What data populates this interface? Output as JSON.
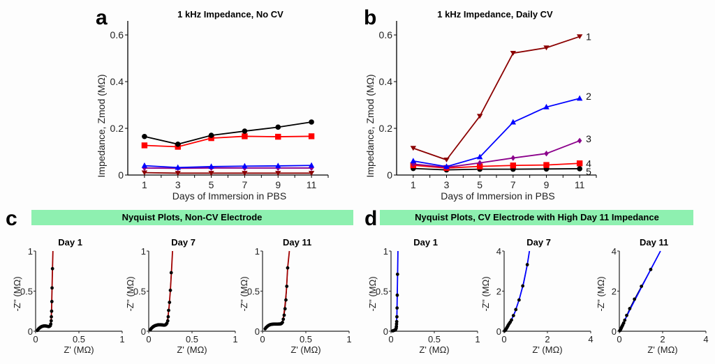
{
  "panels": {
    "a": {
      "letter": "a"
    },
    "b": {
      "letter": "b"
    },
    "c": {
      "letter": "c",
      "banner": "Nyquist Plots, Non-CV Electrode"
    },
    "d": {
      "letter": "d",
      "banner": "Nyquist Plots, CV Electrode with High Day 11 Impedance"
    },
    "banner_color": "#8ef0b0"
  },
  "chart_data": [
    {
      "id": "a",
      "type": "line",
      "title": "1 kHz Impedance, No CV",
      "xlabel": "Days of Immersion in PBS",
      "ylabel": "Impedance, Zmod (MΩ)",
      "x": [
        1,
        3,
        5,
        7,
        9,
        11
      ],
      "xticks": [
        "1",
        "3",
        "5",
        "7",
        "9",
        "11"
      ],
      "xlim": [
        0,
        12
      ],
      "ylim": [
        0,
        0.66
      ],
      "yticks": [
        "0",
        "0.2",
        "0.4",
        "0.6"
      ],
      "ytick_values": [
        0,
        0.2,
        0.4,
        0.6
      ],
      "grid": false,
      "series": [
        {
          "name": "electrode-black",
          "color": "#000000",
          "marker": "circle",
          "values": [
            0.165,
            0.132,
            0.17,
            0.188,
            0.205,
            0.227
          ]
        },
        {
          "name": "electrode-red",
          "color": "#ff0000",
          "marker": "square",
          "values": [
            0.127,
            0.121,
            0.158,
            0.166,
            0.164,
            0.166
          ]
        },
        {
          "name": "electrode-blue",
          "color": "#0000ff",
          "marker": "triangle-up",
          "values": [
            0.04,
            0.032,
            0.036,
            0.038,
            0.039,
            0.041
          ]
        },
        {
          "name": "electrode-purple",
          "color": "#8b008b",
          "marker": "diamond",
          "values": [
            0.03,
            0.029,
            0.03,
            0.03,
            0.03,
            0.03
          ]
        },
        {
          "name": "electrode-darkred",
          "color": "#8b0000",
          "marker": "triangle-down",
          "values": [
            0.01,
            0.008,
            0.008,
            0.008,
            0.008,
            0.008
          ]
        }
      ]
    },
    {
      "id": "b",
      "type": "line",
      "title": "1 kHz Impedance, Daily CV",
      "xlabel": "Days of Immersion in PBS",
      "ylabel": "Impedance, Zmod (MΩ)",
      "x": [
        1,
        3,
        5,
        7,
        9,
        11
      ],
      "xticks": [
        "1",
        "3",
        "5",
        "7",
        "9",
        "11"
      ],
      "xlim": [
        0,
        12
      ],
      "ylim": [
        0,
        0.66
      ],
      "yticks": [
        "0",
        "0.2",
        "0.4",
        "0.6"
      ],
      "ytick_values": [
        0,
        0.2,
        0.4,
        0.6
      ],
      "grid": false,
      "series": [
        {
          "name": "1",
          "label": "1",
          "color": "#8b0000",
          "marker": "triangle-down",
          "values": [
            0.115,
            0.065,
            0.252,
            0.522,
            0.545,
            0.593
          ]
        },
        {
          "name": "2",
          "label": "2",
          "color": "#0000ff",
          "marker": "triangle-up",
          "values": [
            0.06,
            0.036,
            0.077,
            0.226,
            0.291,
            0.328
          ]
        },
        {
          "name": "3",
          "label": "3",
          "color": "#8b008b",
          "marker": "diamond",
          "values": [
            0.047,
            0.033,
            0.052,
            0.073,
            0.092,
            0.147
          ]
        },
        {
          "name": "4",
          "label": "4",
          "color": "#ff0000",
          "marker": "square",
          "values": [
            0.042,
            0.03,
            0.037,
            0.041,
            0.043,
            0.05
          ]
        },
        {
          "name": "5",
          "label": "5",
          "color": "#000000",
          "marker": "circle",
          "values": [
            0.028,
            0.022,
            0.025,
            0.025,
            0.026,
            0.027
          ]
        }
      ]
    },
    {
      "id": "c1",
      "group": "c",
      "type": "scatter",
      "title": "Day 1",
      "xlabel": "Z' (MΩ)",
      "ylabel": "-Z'' (MΩ)",
      "xlim": [
        0,
        1
      ],
      "ylim": [
        0,
        1
      ],
      "xticks": [
        "0",
        "0.5",
        "1"
      ],
      "xtick_values": [
        0,
        0.5,
        1
      ],
      "yticks": [
        "0",
        "0.5",
        "1"
      ],
      "ytick_values": [
        0,
        0.5,
        1
      ],
      "fit_color": "#a00000",
      "points": [
        [
          0.02,
          0.01
        ],
        [
          0.03,
          0.025
        ],
        [
          0.04,
          0.035
        ],
        [
          0.05,
          0.045
        ],
        [
          0.06,
          0.052
        ],
        [
          0.07,
          0.058
        ],
        [
          0.08,
          0.062
        ],
        [
          0.09,
          0.065
        ],
        [
          0.1,
          0.066
        ],
        [
          0.11,
          0.066
        ],
        [
          0.12,
          0.065
        ],
        [
          0.13,
          0.063
        ],
        [
          0.14,
          0.06
        ],
        [
          0.15,
          0.058
        ],
        [
          0.16,
          0.06
        ],
        [
          0.17,
          0.07
        ],
        [
          0.175,
          0.09
        ],
        [
          0.18,
          0.13
        ],
        [
          0.182,
          0.18
        ],
        [
          0.185,
          0.25
        ],
        [
          0.188,
          0.37
        ],
        [
          0.19,
          0.54
        ],
        [
          0.195,
          0.78
        ]
      ],
      "fit": [
        [
          0.17,
          0.06
        ],
        [
          0.18,
          0.15
        ],
        [
          0.185,
          0.3
        ],
        [
          0.19,
          0.55
        ],
        [
          0.195,
          0.78
        ],
        [
          0.2,
          1.0
        ]
      ]
    },
    {
      "id": "c7",
      "group": "c",
      "type": "scatter",
      "title": "Day 7",
      "xlabel": "Z' (MΩ)",
      "ylabel": "-Z'' (MΩ)",
      "xlim": [
        0,
        1
      ],
      "ylim": [
        0,
        1
      ],
      "xticks": [
        "0",
        "0.5",
        "1"
      ],
      "xtick_values": [
        0,
        0.5,
        1
      ],
      "yticks": [
        "0",
        "0.5",
        "1"
      ],
      "ytick_values": [
        0,
        0.5,
        1
      ],
      "fit_color": "#a00000",
      "points": [
        [
          0.02,
          0.02
        ],
        [
          0.03,
          0.035
        ],
        [
          0.04,
          0.045
        ],
        [
          0.05,
          0.055
        ],
        [
          0.06,
          0.062
        ],
        [
          0.07,
          0.068
        ],
        [
          0.08,
          0.072
        ],
        [
          0.09,
          0.075
        ],
        [
          0.1,
          0.078
        ],
        [
          0.11,
          0.08
        ],
        [
          0.12,
          0.08
        ],
        [
          0.13,
          0.08
        ],
        [
          0.14,
          0.08
        ],
        [
          0.15,
          0.079
        ],
        [
          0.16,
          0.078
        ],
        [
          0.17,
          0.076
        ],
        [
          0.18,
          0.076
        ],
        [
          0.19,
          0.078
        ],
        [
          0.2,
          0.085
        ],
        [
          0.21,
          0.1
        ],
        [
          0.22,
          0.13
        ],
        [
          0.225,
          0.18
        ],
        [
          0.23,
          0.26
        ],
        [
          0.24,
          0.36
        ],
        [
          0.25,
          0.51
        ],
        [
          0.26,
          0.73
        ]
      ],
      "fit": [
        [
          0.21,
          0.1
        ],
        [
          0.22,
          0.16
        ],
        [
          0.235,
          0.3
        ],
        [
          0.25,
          0.51
        ],
        [
          0.262,
          0.73
        ],
        [
          0.275,
          1.0
        ]
      ]
    },
    {
      "id": "c11",
      "group": "c",
      "type": "scatter",
      "title": "Day 11",
      "xlabel": "Z' (MΩ)",
      "ylabel": "-Z'' (MΩ)",
      "xlim": [
        0,
        1
      ],
      "ylim": [
        0,
        1
      ],
      "xticks": [
        "0",
        "0.5",
        "1"
      ],
      "xtick_values": [
        0,
        0.5,
        1
      ],
      "yticks": [
        "0",
        "0.5",
        "1"
      ],
      "ytick_values": [
        0,
        0.5,
        1
      ],
      "fit_color": "#a00000",
      "points": [
        [
          0.03,
          0.03
        ],
        [
          0.04,
          0.045
        ],
        [
          0.05,
          0.055
        ],
        [
          0.06,
          0.065
        ],
        [
          0.07,
          0.072
        ],
        [
          0.08,
          0.078
        ],
        [
          0.09,
          0.082
        ],
        [
          0.1,
          0.085
        ],
        [
          0.11,
          0.087
        ],
        [
          0.12,
          0.088
        ],
        [
          0.13,
          0.089
        ],
        [
          0.14,
          0.089
        ],
        [
          0.15,
          0.089
        ],
        [
          0.16,
          0.089
        ],
        [
          0.17,
          0.089
        ],
        [
          0.18,
          0.089
        ],
        [
          0.19,
          0.09
        ],
        [
          0.2,
          0.09
        ],
        [
          0.21,
          0.092
        ],
        [
          0.22,
          0.097
        ],
        [
          0.23,
          0.11
        ],
        [
          0.24,
          0.15
        ],
        [
          0.25,
          0.2
        ],
        [
          0.26,
          0.28
        ],
        [
          0.27,
          0.39
        ],
        [
          0.28,
          0.56
        ],
        [
          0.29,
          0.79
        ]
      ],
      "fit": [
        [
          0.23,
          0.11
        ],
        [
          0.245,
          0.2
        ],
        [
          0.26,
          0.33
        ],
        [
          0.275,
          0.5
        ],
        [
          0.29,
          0.79
        ],
        [
          0.31,
          1.0
        ]
      ]
    },
    {
      "id": "d1",
      "group": "d",
      "type": "scatter",
      "title": "Day 1",
      "xlabel": "Z' (MΩ)",
      "ylabel": "-Z'' (MΩ)",
      "xlim": [
        0,
        1
      ],
      "ylim": [
        0,
        1
      ],
      "xticks": [
        "0",
        "0.5",
        "1"
      ],
      "xtick_values": [
        0,
        0.5,
        1
      ],
      "yticks": [
        "0",
        "0.5",
        "1"
      ],
      "ytick_values": [
        0,
        0.5,
        1
      ],
      "fit_color": "#0000ff",
      "points": [
        [
          0.02,
          0.005
        ],
        [
          0.03,
          0.008
        ],
        [
          0.04,
          0.012
        ],
        [
          0.05,
          0.018
        ],
        [
          0.055,
          0.025
        ],
        [
          0.06,
          0.04
        ],
        [
          0.062,
          0.06
        ],
        [
          0.064,
          0.09
        ],
        [
          0.066,
          0.12
        ],
        [
          0.068,
          0.18
        ],
        [
          0.07,
          0.29
        ],
        [
          0.072,
          0.45
        ],
        [
          0.075,
          0.71
        ]
      ],
      "fit": [
        [
          0.055,
          0.02
        ],
        [
          0.062,
          0.08
        ],
        [
          0.068,
          0.2
        ],
        [
          0.072,
          0.45
        ],
        [
          0.076,
          0.71
        ],
        [
          0.08,
          1.0
        ]
      ]
    },
    {
      "id": "d7",
      "group": "d",
      "type": "scatter",
      "title": "Day 7",
      "xlabel": "Z' (MΩ)",
      "ylabel": "-Z'' (MΩ)",
      "xlim": [
        0,
        4
      ],
      "ylim": [
        0,
        4
      ],
      "xticks": [
        "0",
        "2",
        "4"
      ],
      "xtick_values": [
        0,
        2,
        4
      ],
      "yticks": [
        "0",
        "2",
        "4"
      ],
      "ytick_values": [
        0,
        2,
        4
      ],
      "fit_color": "#0000ff",
      "points": [
        [
          0.02,
          0.02
        ],
        [
          0.05,
          0.05
        ],
        [
          0.08,
          0.09
        ],
        [
          0.1,
          0.13
        ],
        [
          0.13,
          0.18
        ],
        [
          0.16,
          0.24
        ],
        [
          0.19,
          0.3
        ],
        [
          0.23,
          0.37
        ],
        [
          0.28,
          0.45
        ],
        [
          0.34,
          0.56
        ],
        [
          0.43,
          0.78
        ],
        [
          0.54,
          1.08
        ],
        [
          0.69,
          1.56
        ],
        [
          0.86,
          2.26
        ],
        [
          1.07,
          3.32
        ]
      ],
      "fit": [
        [
          0.3,
          0.48
        ],
        [
          0.5,
          0.95
        ],
        [
          0.7,
          1.6
        ],
        [
          0.9,
          2.4
        ],
        [
          1.07,
          3.32
        ],
        [
          1.17,
          4.0
        ]
      ]
    },
    {
      "id": "d11",
      "group": "d",
      "type": "scatter",
      "title": "Day 11",
      "xlabel": "Z' (MΩ)",
      "ylabel": "-Z'' (MΩ)",
      "xlim": [
        0,
        4
      ],
      "ylim": [
        0,
        4
      ],
      "xticks": [
        "0",
        "2",
        "4"
      ],
      "xtick_values": [
        0,
        2,
        4
      ],
      "yticks": [
        "0",
        "2",
        "4"
      ],
      "ytick_values": [
        0,
        2,
        4
      ],
      "fit_color": "#0000ff",
      "points": [
        [
          0.02,
          0.03
        ],
        [
          0.04,
          0.06
        ],
        [
          0.06,
          0.1
        ],
        [
          0.08,
          0.14
        ],
        [
          0.1,
          0.19
        ],
        [
          0.13,
          0.25
        ],
        [
          0.16,
          0.32
        ],
        [
          0.2,
          0.41
        ],
        [
          0.25,
          0.55
        ],
        [
          0.34,
          0.79
        ],
        [
          0.48,
          1.13
        ],
        [
          0.7,
          1.6
        ],
        [
          1.02,
          2.24
        ],
        [
          1.45,
          3.08
        ]
      ],
      "fit": [
        [
          0.0,
          0.0
        ],
        [
          0.5,
          1.1
        ],
        [
          1.0,
          2.15
        ],
        [
          1.45,
          3.08
        ],
        [
          1.9,
          4.0
        ]
      ]
    }
  ]
}
